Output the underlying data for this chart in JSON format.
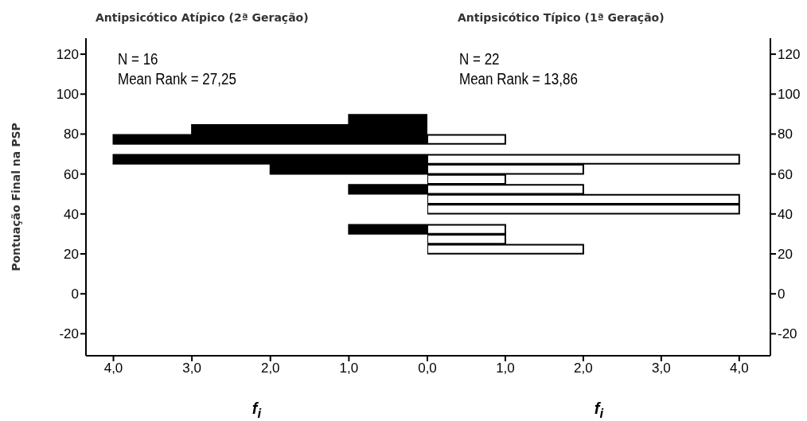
{
  "chart_data": [
    {
      "type": "histogram",
      "orientation": "horizontal",
      "title": "Antipsicótico Atípico (2ª Geração)",
      "xlabel": "f$_{i}$",
      "ylabel": "Pontuação Final na PSP",
      "annotations": [
        "N = 16",
        "Mean Rank = 27,25"
      ],
      "bins": [
        20,
        25,
        30,
        35,
        40,
        45,
        50,
        55,
        60,
        65,
        70,
        75,
        80,
        85,
        90
      ],
      "values": [
        0,
        0,
        1,
        0,
        0,
        0,
        1,
        0,
        2,
        4,
        0,
        4,
        3,
        1
      ],
      "color": "#000000",
      "xlim": [
        4.35,
        0
      ],
      "xticks": [
        {
          "value": 4,
          "label": "4,0"
        },
        {
          "value": 3,
          "label": "3,0"
        },
        {
          "value": 2,
          "label": "2,0"
        },
        {
          "value": 1,
          "label": "1,0"
        },
        {
          "value": 0,
          "label": "0,0"
        }
      ],
      "ylim": [
        -31,
        128
      ],
      "yticks": [
        -20,
        0,
        20,
        40,
        60,
        80,
        100,
        120
      ]
    },
    {
      "type": "histogram",
      "orientation": "horizontal",
      "title": "Antipsicótico Típico (1ª Geração)",
      "xlabel": "f$_{i}$",
      "annotations": [
        "N = 22",
        "Mean Rank = 13,86"
      ],
      "bins": [
        20,
        25,
        30,
        35,
        40,
        45,
        50,
        55,
        60,
        65,
        70,
        75,
        80,
        85,
        90
      ],
      "values": [
        2,
        1,
        1,
        0,
        4,
        4,
        2,
        1,
        2,
        4,
        0,
        1,
        0,
        0
      ],
      "color": "#ffffff",
      "xlim": [
        0,
        4.4
      ],
      "xticks": [
        {
          "value": 0,
          "label": null
        },
        {
          "value": 1,
          "label": "1,0"
        },
        {
          "value": 2,
          "label": "2,0"
        },
        {
          "value": 3,
          "label": "3,0"
        },
        {
          "value": 4,
          "label": "4,0"
        }
      ],
      "ylim": [
        -31,
        128
      ],
      "yticks": [
        -20,
        0,
        20,
        40,
        60,
        80,
        100,
        120
      ]
    }
  ]
}
